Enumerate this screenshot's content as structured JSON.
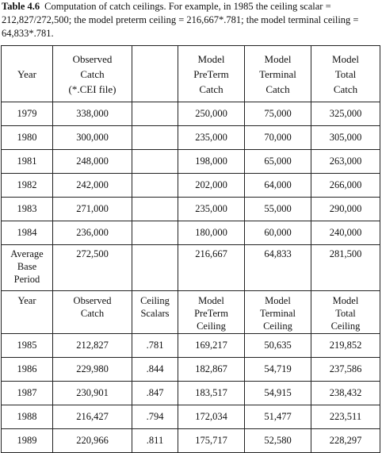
{
  "caption": {
    "label": "Table 4.6",
    "text": "Computation of catch ceilings. For example, in 1985 the ceiling scalar = 212,827/272,500; the model preterm ceiling = 216,667*.781; the model terminal ceiling = 64,833*.781."
  },
  "base_header": {
    "year": "Year",
    "observed": [
      "Observed",
      "Catch",
      "(*.CEI  file)"
    ],
    "blank": "",
    "preterm": [
      "Model",
      "PreTerm",
      "Catch"
    ],
    "terminal": [
      "Model",
      "Terminal",
      "Catch"
    ],
    "total": [
      "Model",
      "Total",
      "Catch"
    ]
  },
  "base_rows": [
    {
      "year": "1979",
      "observed": "338,000",
      "scalar": "",
      "preterm": "250,000",
      "terminal": "75,000",
      "total": "325,000"
    },
    {
      "year": "1980",
      "observed": "300,000",
      "scalar": "",
      "preterm": "235,000",
      "terminal": "70,000",
      "total": "305,000"
    },
    {
      "year": "1981",
      "observed": "248,000",
      "scalar": "",
      "preterm": "198,000",
      "terminal": "65,000",
      "total": "263,000"
    },
    {
      "year": "1982",
      "observed": "242,000",
      "scalar": "",
      "preterm": "202,000",
      "terminal": "64,000",
      "total": "266,000"
    },
    {
      "year": "1983",
      "observed": "271,000",
      "scalar": "",
      "preterm": "235,000",
      "terminal": "55,000",
      "total": "290,000"
    },
    {
      "year": "1984",
      "observed": "236,000",
      "scalar": "",
      "preterm": "180,000",
      "terminal": "60,000",
      "total": "240,000"
    }
  ],
  "average": {
    "label": [
      "Average",
      "Base",
      "Period"
    ],
    "observed": "272,500",
    "scalar": "",
    "preterm": "216,667",
    "terminal": "64,833",
    "total": "281,500"
  },
  "ceiling_header": {
    "year": "Year",
    "observed": [
      "Observed",
      "Catch"
    ],
    "scalar": [
      "Ceiling",
      "Scalars"
    ],
    "preterm": [
      "Model",
      "PreTerm",
      "Ceiling"
    ],
    "terminal": [
      "Model",
      "Terminal",
      "Ceiling"
    ],
    "total": [
      "Model",
      "Total",
      "Ceiling"
    ]
  },
  "ceiling_rows": [
    {
      "year": "1985",
      "observed": "212,827",
      "scalar": ".781",
      "preterm": "169,217",
      "terminal": "50,635",
      "total": "219,852"
    },
    {
      "year": "1986",
      "observed": "229,980",
      "scalar": ".844",
      "preterm": "182,867",
      "terminal": "54,719",
      "total": "237,586"
    },
    {
      "year": "1987",
      "observed": "230,901",
      "scalar": ".847",
      "preterm": "183,517",
      "terminal": "54,915",
      "total": "238,432"
    },
    {
      "year": "1988",
      "observed": "216,427",
      "scalar": ".794",
      "preterm": "172,034",
      "terminal": "51,477",
      "total": "223,511"
    },
    {
      "year": "1989",
      "observed": "220,966",
      "scalar": ".811",
      "preterm": "175,717",
      "terminal": "52,580",
      "total": "228,297"
    }
  ]
}
